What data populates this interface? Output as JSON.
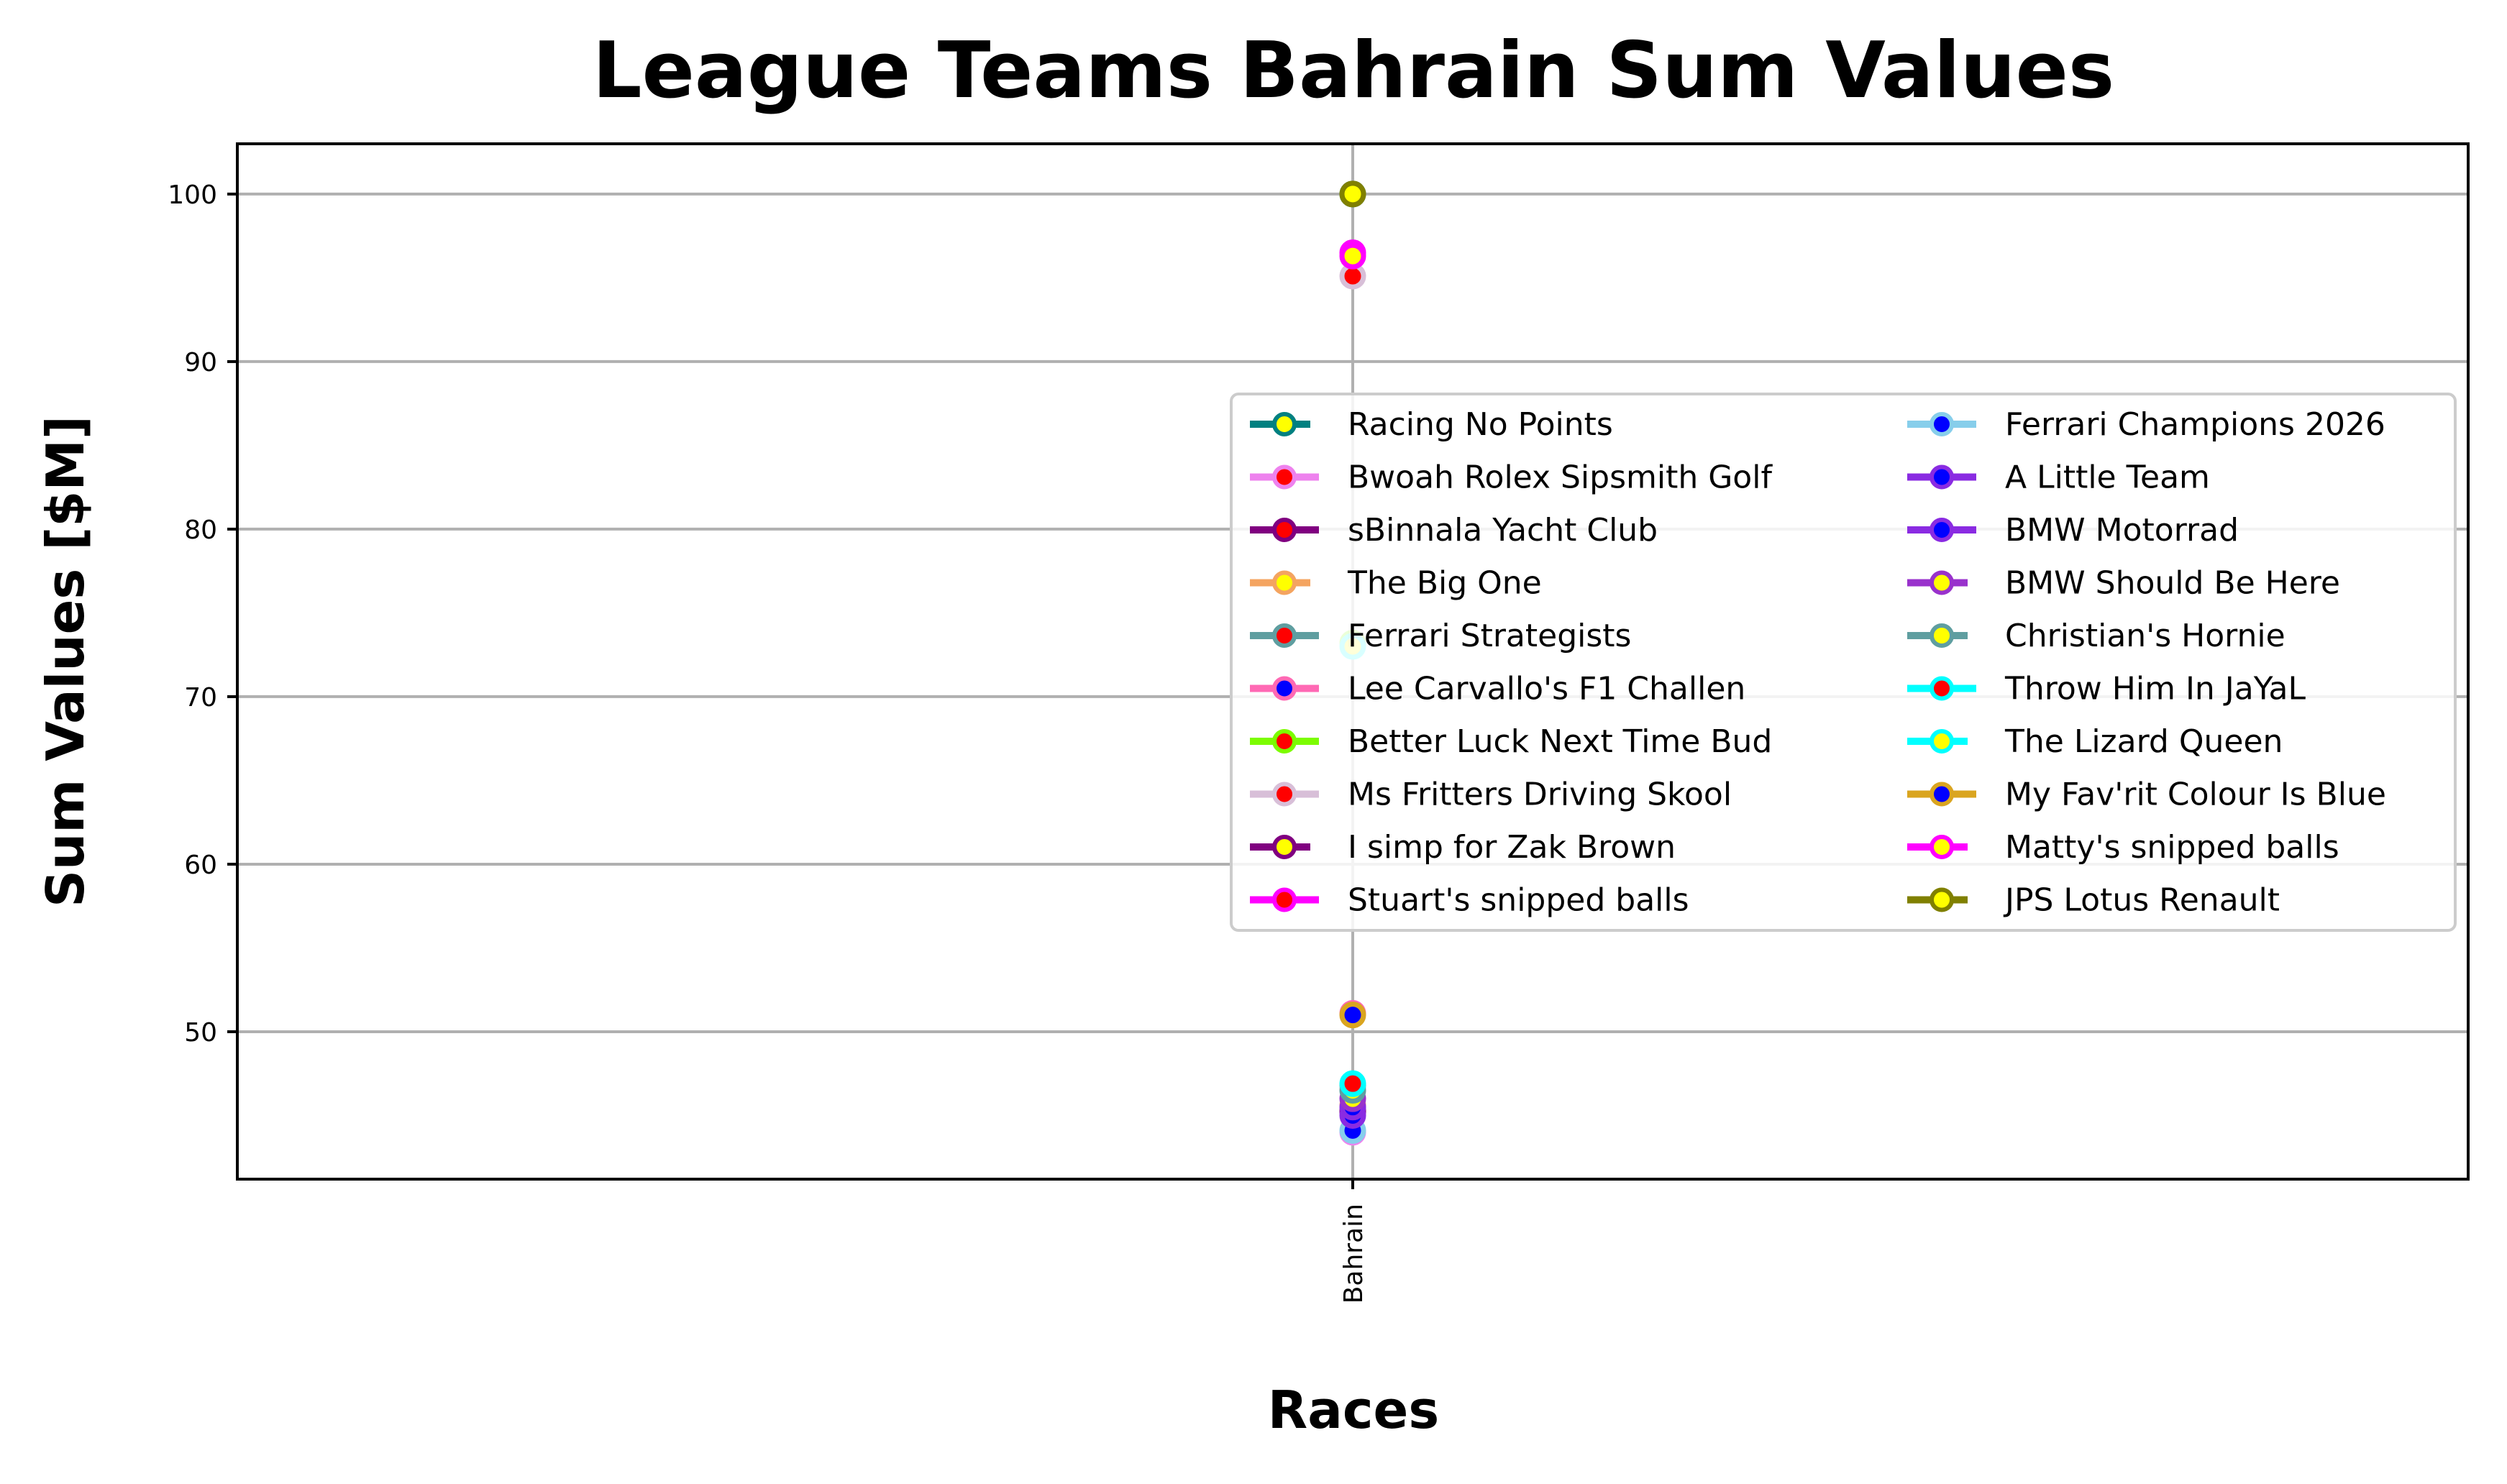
{
  "chart_data": {
    "type": "line",
    "title": "League Teams Bahrain Sum Values",
    "xlabel": "Races",
    "ylabel": "Sum Values [$M]",
    "categories": [
      "Bahrain"
    ],
    "ylim": [
      41.2,
      103.0
    ],
    "yticks": [
      50,
      60,
      70,
      80,
      90,
      100
    ],
    "grid": true,
    "legend_placement": "center-right",
    "legend_columns": 2,
    "series": [
      {
        "name": "Racing No Points",
        "values": [
          100.0
        ],
        "line_color": "#008080",
        "marker_face": "#ffff00",
        "dashed": true
      },
      {
        "name": "Bwoah Rolex Sipsmith Golf",
        "values": [
          44.0
        ],
        "line_color": "#ee82ee",
        "marker_face": "#ff0000",
        "dashed": false
      },
      {
        "name": "sBinnala Yacht Club",
        "values": [
          45.2
        ],
        "line_color": "#800080",
        "marker_face": "#ff0000",
        "dashed": false
      },
      {
        "name": "The Big One",
        "values": [
          45.6
        ],
        "line_color": "#f4a460",
        "marker_face": "#ffff00",
        "dashed": true
      },
      {
        "name": "Ferrari Strategists",
        "values": [
          46.8
        ],
        "line_color": "#5f9ea0",
        "marker_face": "#ff0000",
        "dashed": false
      },
      {
        "name": "Lee Carvallo's F1 Challen",
        "values": [
          51.1
        ],
        "line_color": "#ff69b4",
        "marker_face": "#0000ff",
        "dashed": false
      },
      {
        "name": "Better Luck Next Time Bud",
        "values": [
          73.2
        ],
        "line_color": "#7cfc00",
        "marker_face": "#ff0000",
        "dashed": false
      },
      {
        "name": "Ms Fritters Driving Skool",
        "values": [
          95.1
        ],
        "line_color": "#d8bfd8",
        "marker_face": "#ff0000",
        "dashed": false
      },
      {
        "name": "I simp for Zak Brown",
        "values": [
          45.3
        ],
        "line_color": "#800080",
        "marker_face": "#ffff00",
        "dashed": true
      },
      {
        "name": "Stuart's snipped balls",
        "values": [
          96.5
        ],
        "line_color": "#ff00ff",
        "marker_face": "#ff0000",
        "dashed": false
      },
      {
        "name": "Ferrari Champions 2026",
        "values": [
          44.1
        ],
        "line_color": "#87ceeb",
        "marker_face": "#0000ff",
        "dashed": false
      },
      {
        "name": "A Little Team",
        "values": [
          45.0
        ],
        "line_color": "#8a2be2",
        "marker_face": "#0000ff",
        "dashed": false
      },
      {
        "name": "BMW Motorrad",
        "values": [
          45.5
        ],
        "line_color": "#8a2be2",
        "marker_face": "#0000ff",
        "dashed": false
      },
      {
        "name": "BMW Should Be Here",
        "values": [
          46.0
        ],
        "line_color": "#9932cc",
        "marker_face": "#ffff00",
        "dashed": true
      },
      {
        "name": "Christian's Hornie",
        "values": [
          46.5
        ],
        "line_color": "#5f9ea0",
        "marker_face": "#ffff00",
        "dashed": true
      },
      {
        "name": "Throw Him In JaYaL",
        "values": [
          46.9
        ],
        "line_color": "#00ffff",
        "marker_face": "#ff0000",
        "dashed": false
      },
      {
        "name": "The Lizard Queen",
        "values": [
          73.0
        ],
        "line_color": "#00ffff",
        "marker_face": "#ffff00",
        "dashed": true
      },
      {
        "name": "My Fav'rit Colour Is Blue",
        "values": [
          51.0
        ],
        "line_color": "#daa520",
        "marker_face": "#0000ff",
        "dashed": false
      },
      {
        "name": "Matty's snipped balls",
        "values": [
          96.3
        ],
        "line_color": "#ff00ff",
        "marker_face": "#ffff00",
        "dashed": true
      },
      {
        "name": "JPS Lotus Renault",
        "values": [
          100.0
        ],
        "line_color": "#808000",
        "marker_face": "#ffff00",
        "dashed": true
      }
    ]
  }
}
